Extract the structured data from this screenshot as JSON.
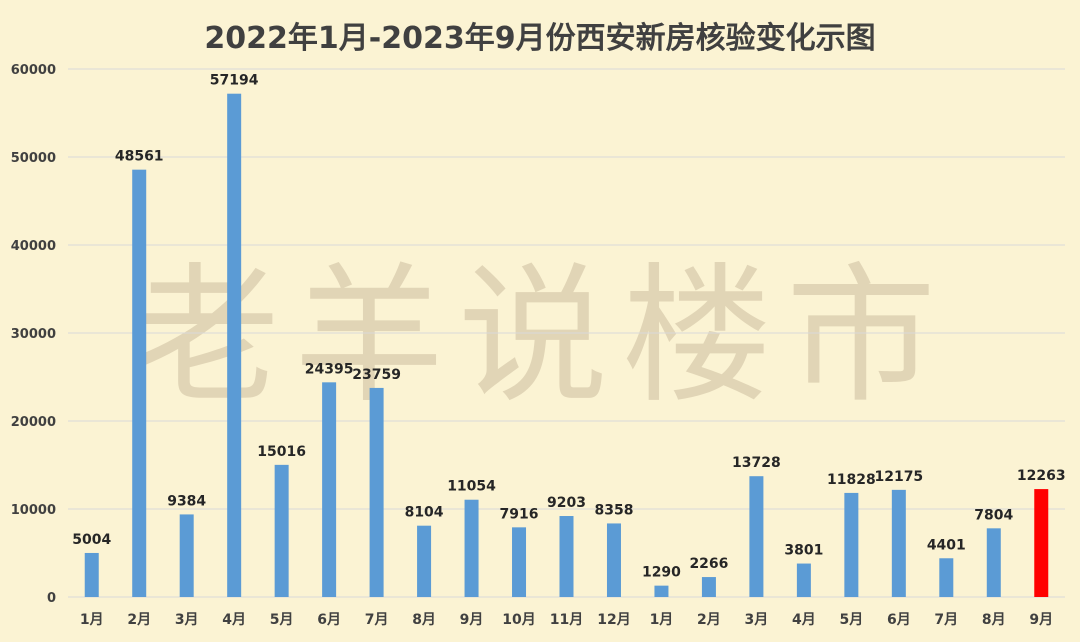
{
  "chart_data": {
    "type": "bar",
    "title": "2022年1月-2023年9月份西安新房核验变化示图",
    "watermark": "老羊说楼市",
    "categories": [
      "1月",
      "2月",
      "3月",
      "4月",
      "5月",
      "6月",
      "7月",
      "8月",
      "9月",
      "10月",
      "11月",
      "12月",
      "1月",
      "2月",
      "3月",
      "4月",
      "5月",
      "6月",
      "7月",
      "8月",
      "9月"
    ],
    "values": [
      5004,
      48561,
      9384,
      57194,
      15016,
      24395,
      23759,
      8104,
      11054,
      7916,
      9203,
      8358,
      1290,
      2266,
      13728,
      3801,
      11828,
      12175,
      4401,
      7804,
      12263
    ],
    "value_labels": [
      "5004",
      "48561",
      "9384",
      "57194",
      "15016",
      "24395",
      "23759",
      "8104",
      "11054",
      "7916",
      "9203",
      "8358",
      "1290",
      "2266",
      "13728",
      "3801",
      "11828",
      "12175",
      "4401",
      "7804",
      "12263"
    ],
    "y_ticks": [
      "0",
      "10000",
      "20000",
      "30000",
      "40000",
      "50000",
      "60000"
    ],
    "ylim": [
      0,
      60000
    ],
    "highlight_index": 20,
    "colors": {
      "bar": "#5b9bd5",
      "highlight": "#ff0000",
      "background": "#fbf3d3"
    },
    "grid": true,
    "legend": "none",
    "xlabel": "",
    "ylabel": ""
  }
}
